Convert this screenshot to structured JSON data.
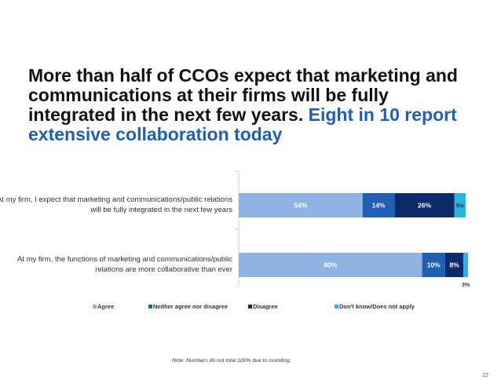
{
  "title": {
    "main": "More than half of CCOs expect that marketing and communications at their firms will be fully integrated in the next few years.",
    "accent": "Eight in 10 report extensive collaboration today"
  },
  "chart_data": {
    "type": "bar",
    "orientation": "horizontal",
    "stacked": true,
    "categories": [
      "At my firm, I expect that marketing and communications/public relations will be fully integrated in the next few years",
      "At my firm, the functions of marketing and communications/public relations are more collaborative than ever"
    ],
    "category_lines": [
      [
        "At my firm, I expect that marketing and communications/public relations",
        "will be fully integrated in the next few years"
      ],
      [
        "At my firm, the functions of marketing and communications/public",
        "relations are more collaborative than ever"
      ]
    ],
    "series": [
      {
        "name": "Agree",
        "values": [
          54,
          80
        ],
        "labels": [
          "54%",
          "80%"
        ],
        "color": "#8fb4e3",
        "label_color": "#ffffff"
      },
      {
        "name": "Neither agree nor disagree",
        "values": [
          14,
          10
        ],
        "labels": [
          "14%",
          "10%"
        ],
        "color": "#1f5fb4",
        "label_color": "#ffffff"
      },
      {
        "name": "Disagree",
        "values": [
          26,
          8
        ],
        "labels": [
          "26%",
          "8%"
        ],
        "color": "#0d2a6b",
        "label_color": "#ffffff"
      },
      {
        "name": "Don't know/Does not apply",
        "values": [
          5,
          3
        ],
        "labels": [
          "5%",
          "3%"
        ],
        "color": "#2bb3e3",
        "label_color": "#333333"
      }
    ],
    "xlim": [
      0,
      100
    ],
    "legend_position": "bottom"
  },
  "note": "Note: Numbers do not total 100% due to rounding.",
  "page_number": "22"
}
